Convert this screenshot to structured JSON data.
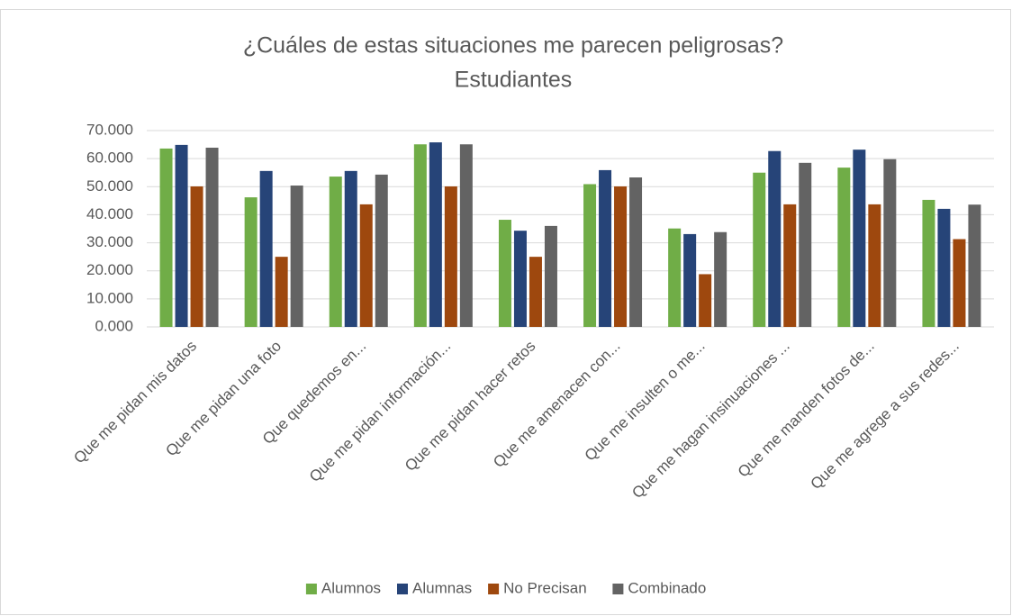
{
  "chart_data": {
    "type": "bar",
    "title": "¿Cuáles de estas situaciones me parecen peligrosas?",
    "subtitle": "Estudiantes",
    "categories": [
      "Que me pidan mis datos",
      "Que me pidan una foto",
      "Que quedemos en...",
      "Que me pidan información...",
      "Que me pidan hacer retos",
      "Que me amenacen con...",
      "Que me insulten o me...",
      "Que me hagan insinuaciones ...",
      "Que me manden fotos de...",
      "Que me agrege a sus redes..."
    ],
    "series": [
      {
        "name": "Alumnos",
        "color": "#70ad47",
        "values": [
          63.6,
          46.2,
          53.6,
          65.1,
          38.2,
          50.9,
          35.1,
          55.0,
          56.8,
          45.3
        ]
      },
      {
        "name": "Alumnas",
        "color": "#264478",
        "values": [
          64.9,
          55.6,
          55.6,
          65.8,
          34.3,
          55.9,
          33.1,
          62.7,
          63.2,
          42.1
        ]
      },
      {
        "name": "No Precisan",
        "color": "#9e480e",
        "values": [
          50.1,
          25.0,
          43.7,
          50.1,
          25.0,
          50.1,
          18.8,
          43.7,
          43.7,
          31.3
        ]
      },
      {
        "name": "Combinado",
        "color": "#636363",
        "values": [
          63.9,
          50.4,
          54.3,
          65.1,
          36.0,
          53.3,
          33.8,
          58.5,
          59.8,
          43.6
        ]
      }
    ],
    "ylim": [
      0,
      70
    ],
    "yticks": [
      {
        "value": 0,
        "label": "0.000"
      },
      {
        "value": 10,
        "label": "10.000"
      },
      {
        "value": 20,
        "label": "20.000"
      },
      {
        "value": 30,
        "label": "30.000"
      },
      {
        "value": 40,
        "label": "40.000"
      },
      {
        "value": 50,
        "label": "50.000"
      },
      {
        "value": 60,
        "label": "60.000"
      },
      {
        "value": 70,
        "label": "70.000"
      }
    ],
    "grid": true,
    "legend": "bottom"
  }
}
